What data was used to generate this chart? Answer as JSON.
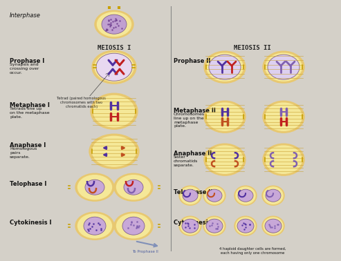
{
  "bg_color": "#d4d0c8",
  "cell_outer_color": "#e8c870",
  "cell_inner_color": "#f5e898",
  "nucleus_color": "#c8a8d8",
  "nucleus_border": "#806090",
  "chr_blue": "#5030a0",
  "chr_red": "#c02020",
  "chr_orange": "#c05020",
  "chr_purple": "#8060b0",
  "spindle_color": "#c8a030",
  "divider_color": "#888888",
  "arrow_color": "#8090b8",
  "sections": {
    "left_title": "MEIOSIS I",
    "right_title": "MEIOSIS II",
    "interphase": "Interphase",
    "prophase1": "Prophase I",
    "prophase1_desc": "Synapsis and\ncrossing over\noccur.",
    "metaphase1": "Metaphase I",
    "metaphase1_desc": "Tetrads line up\non the metaphase\nplate.",
    "anaphase1": "Anaphase I",
    "anaphase1_desc": "Homologous\npairs\nseparate.",
    "telophase1": "Telophase I",
    "cytokinesis1": "Cytokinesis I",
    "prophase2": "Prophase II",
    "metaphase2": "Metaphase II",
    "metaphase2_desc": "Chromosomes\nline up on the\nmetaphase\nplate.",
    "anaphase2": "Anaphase II",
    "anaphase2_desc": "Sister\nchromatids\nseparate.",
    "telophase2": "Telophase II",
    "cytokinesis2": "Cytokinesis II",
    "tetrad_label": "Tetrad (paired homologous\nchromosomes with two\nchromatids each)",
    "arrow_label": "To Prophase II",
    "final_label": "4 haploid daughter cells are formed,\neach having only one chromosome"
  }
}
